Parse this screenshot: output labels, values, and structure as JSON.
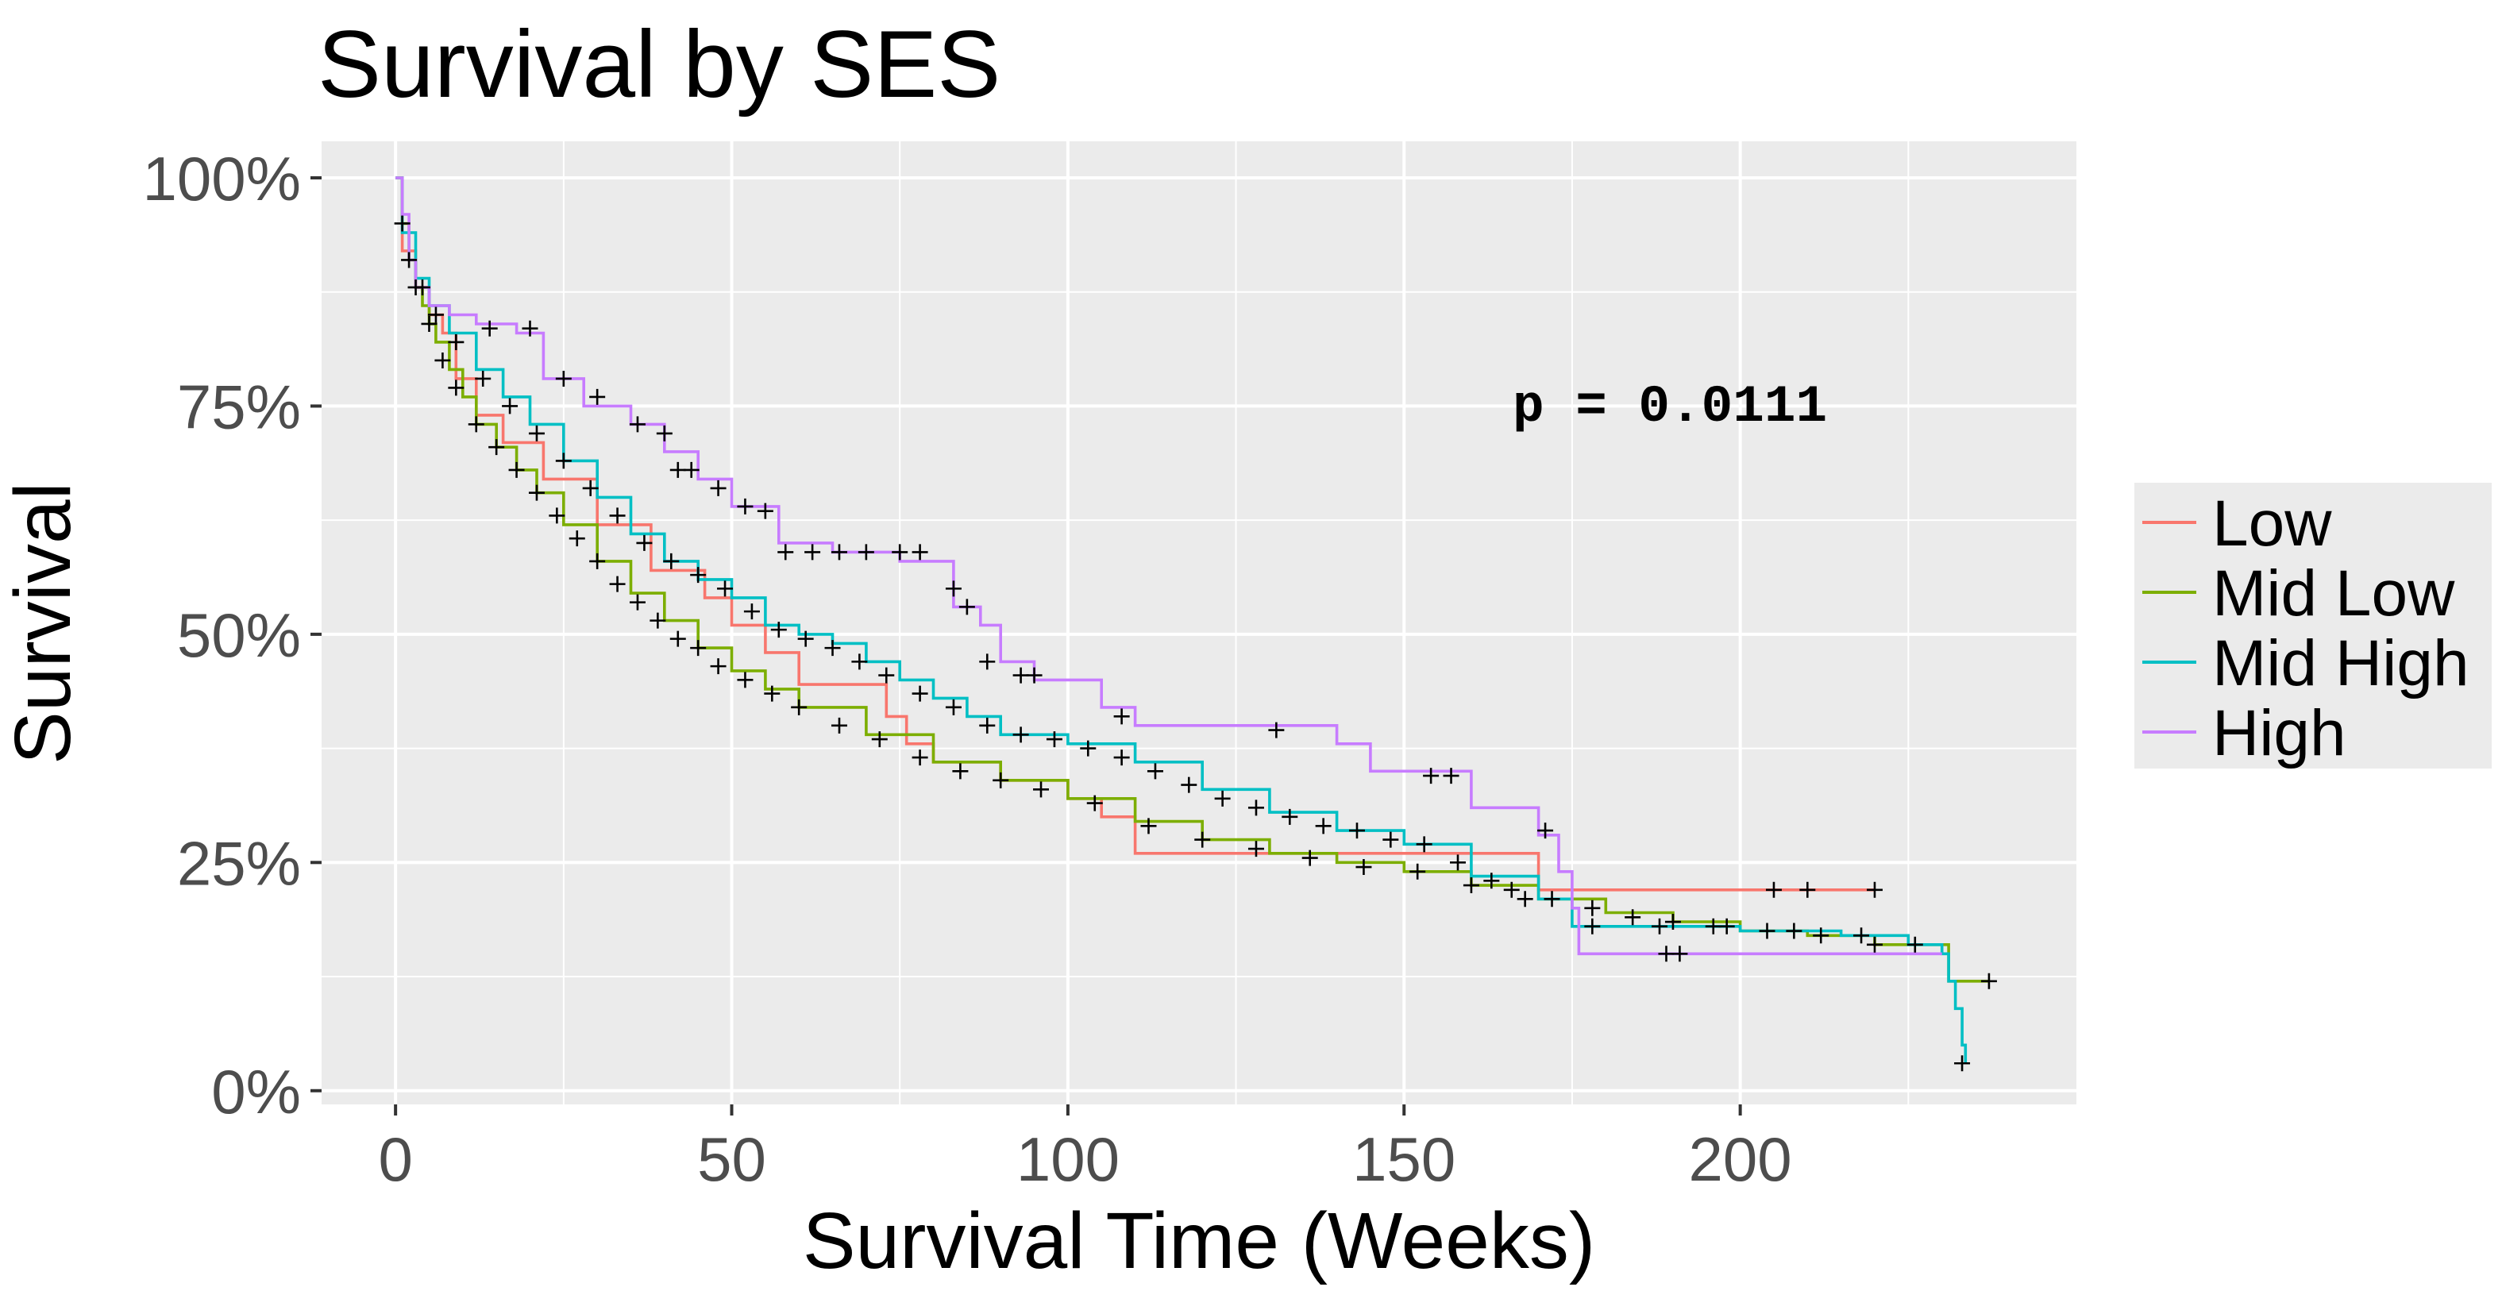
{
  "chart_data": {
    "type": "line",
    "subtype": "kaplan-meier step plot with censor marks",
    "title": "Survival by SES",
    "xlabel": "Survival Time (Weeks)",
    "ylabel": "Survival",
    "xlim": [
      -11,
      250
    ],
    "ylim": [
      -1.5,
      104
    ],
    "x_ticks": [
      0,
      50,
      100,
      150,
      200
    ],
    "x_tick_labels": [
      "0",
      "50",
      "100",
      "150",
      "200"
    ],
    "y_ticks": [
      0,
      25,
      50,
      75,
      100
    ],
    "y_tick_labels": [
      "0%",
      "25%",
      "50%",
      "75%",
      "100%"
    ],
    "grid": true,
    "legend_position": "right",
    "annotation": "p = 0.0111",
    "annotation_x": 190,
    "annotation_y": 75,
    "series": [
      {
        "name": "Low",
        "color": "#F8766D",
        "x": [
          0,
          1,
          3,
          5,
          7,
          9,
          12,
          16,
          22,
          30,
          38,
          46,
          50,
          55,
          60,
          73,
          76,
          80,
          90,
          100,
          105,
          110,
          158,
          170,
          220
        ],
        "y": [
          100,
          92,
          88,
          85,
          83,
          78,
          74,
          71,
          67,
          62,
          57,
          54,
          51,
          48,
          44.5,
          41,
          38,
          36,
          34,
          32,
          30,
          26,
          26,
          22,
          22
        ],
        "censor_x": [
          205,
          210,
          220
        ],
        "censor_y": [
          22,
          22,
          22
        ]
      },
      {
        "name": "Mid Low",
        "color": "#7CAE00",
        "x": [
          0,
          1,
          2,
          3,
          4,
          5,
          6,
          8,
          10,
          12,
          15,
          18,
          21,
          25,
          30,
          35,
          40,
          45,
          50,
          55,
          60,
          70,
          80,
          90,
          100,
          110,
          120,
          130,
          140,
          150,
          160,
          170,
          180,
          190,
          200,
          210,
          220,
          229,
          231,
          237
        ],
        "y": [
          100,
          95,
          91,
          88,
          86,
          84,
          82,
          79,
          76,
          73,
          70.5,
          68,
          65.5,
          62,
          58,
          54.5,
          51.5,
          48.5,
          46,
          44,
          42,
          39,
          36,
          34,
          32,
          29.5,
          27.5,
          26,
          25,
          24,
          22.5,
          21,
          19.5,
          18.5,
          17.5,
          17,
          16,
          16,
          12,
          12
        ],
        "censor_x": [
          1,
          3,
          5,
          7,
          9,
          12,
          15,
          18,
          21,
          24,
          27,
          30,
          33,
          36,
          39,
          42,
          45,
          48,
          52,
          56,
          60,
          66,
          72,
          78,
          84,
          90,
          96,
          104,
          112,
          120,
          128,
          136,
          144,
          152,
          160,
          166,
          172,
          178,
          184,
          190,
          196,
          204,
          212,
          220,
          226,
          237
        ],
        "censor_y": [
          95,
          88,
          84,
          80,
          77,
          73,
          70.5,
          68,
          65.5,
          63,
          60.5,
          58,
          55.5,
          53.5,
          51.5,
          49.5,
          48.5,
          46.5,
          45,
          43.5,
          42,
          40,
          38.5,
          36.5,
          35,
          34,
          33,
          31.5,
          29,
          27.5,
          26.5,
          25.5,
          24.5,
          24,
          22.5,
          22,
          21,
          20,
          19,
          18.5,
          18,
          17.5,
          17,
          16,
          16,
          12
        ]
      },
      {
        "name": "Mid High",
        "color": "#00BFC4",
        "x": [
          0,
          1,
          3,
          5,
          8,
          12,
          16,
          20,
          25,
          30,
          35,
          40,
          45,
          50,
          55,
          60,
          65,
          70,
          75,
          80,
          85,
          90,
          100,
          110,
          120,
          130,
          140,
          150,
          160,
          170,
          175,
          180,
          190,
          200,
          215,
          225,
          230,
          231,
          232,
          233,
          233.5
        ],
        "y": [
          100,
          94,
          89,
          86,
          83,
          79,
          76,
          73,
          69,
          65,
          61,
          58,
          56,
          54,
          51,
          50,
          49,
          47,
          45,
          43,
          41,
          39,
          38,
          36,
          33,
          30.5,
          28.5,
          27,
          23.5,
          21,
          18,
          18,
          18,
          17.5,
          17,
          16,
          15,
          12,
          9,
          5,
          3
        ],
        "censor_x": [
          2,
          4,
          6,
          9,
          13,
          17,
          21,
          25,
          29,
          33,
          37,
          41,
          45,
          49,
          53,
          57,
          61,
          65,
          69,
          73,
          78,
          83,
          88,
          93,
          98,
          103,
          108,
          113,
          118,
          123,
          128,
          133,
          138,
          143,
          148,
          153,
          158,
          163,
          168,
          178,
          188,
          198,
          208,
          218,
          233
        ],
        "censor_y": [
          91,
          88,
          85,
          82,
          78,
          75,
          72,
          69,
          66,
          63,
          60,
          58,
          56.5,
          55,
          52.5,
          50.5,
          49.5,
          48.5,
          47,
          45.5,
          43.5,
          42,
          40,
          39,
          38.5,
          37.5,
          36.5,
          35,
          33.5,
          32,
          31,
          30,
          29,
          28.5,
          27.5,
          27,
          25,
          23,
          21,
          18,
          18,
          18,
          17.5,
          17,
          3
        ]
      },
      {
        "name": "High",
        "color": "#C77CFF",
        "x": [
          0,
          1,
          2,
          3,
          5,
          8,
          12,
          18,
          22,
          28,
          35,
          40,
          45,
          50,
          57,
          65,
          75,
          83,
          87,
          90,
          95,
          105,
          110,
          120,
          130,
          140,
          145,
          150,
          160,
          170,
          173,
          175,
          176,
          190,
          200,
          230
        ],
        "y": [
          100,
          96,
          91,
          88,
          86,
          85,
          84,
          83,
          78,
          75,
          73,
          70,
          67,
          64,
          60,
          59,
          58,
          53,
          51,
          47,
          45,
          42,
          40,
          40,
          40,
          38,
          35,
          35,
          31,
          28,
          24,
          20,
          15,
          15,
          15,
          15
        ],
        "censor_x": [
          14,
          20,
          25,
          30,
          36,
          40,
          42,
          44,
          48,
          52,
          55,
          58,
          62,
          66,
          70,
          75,
          78,
          83,
          85,
          88,
          93,
          95,
          108,
          131,
          154,
          157,
          171,
          189,
          191
        ],
        "censor_y": [
          83.5,
          83.5,
          78,
          76,
          73,
          72,
          68,
          68,
          66,
          64,
          63.5,
          59,
          59,
          59,
          59,
          59,
          59,
          55,
          53,
          47,
          45.5,
          45.5,
          41,
          39.5,
          34.5,
          34.5,
          28.5,
          15,
          15
        ]
      }
    ]
  }
}
